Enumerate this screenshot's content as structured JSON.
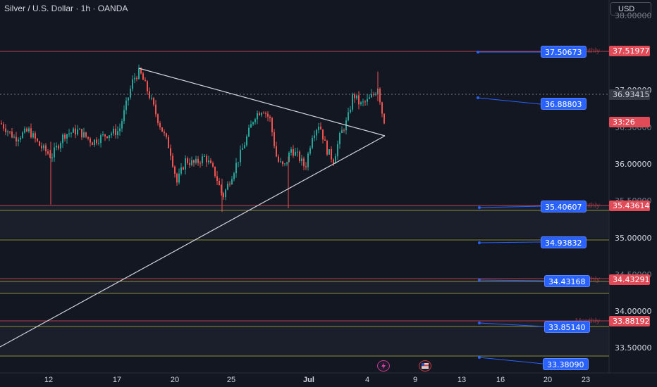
{
  "header": {
    "title": "Silver / U.S. Dollar · 1h · OANDA",
    "currency": "USD"
  },
  "y_axis": {
    "ticks": [
      "37.00000",
      "36.00000",
      "35.50000",
      "35.00000",
      "34.50000",
      "34.00000",
      "33.50000"
    ],
    "partial_ticks": [
      "38.00000",
      "36.50000"
    ]
  },
  "x_axis": {
    "ticks": [
      "12",
      "17",
      "20",
      "25",
      "Jul",
      "4",
      "9",
      "13",
      "16",
      "20",
      "23"
    ]
  },
  "badges": {
    "p_37_51977": "37.51977",
    "p_36_93415": "36.93415",
    "countdown": "33:26",
    "p_35_43614": "35.43614",
    "p_34_43291": "34.43291",
    "p_33_88192": "33.88192"
  },
  "monthly_label": "Monthly",
  "projections": [
    "37.50673",
    "36.88803",
    "35.40607",
    "34.93832",
    "34.43168",
    "33.85140",
    "33.38090"
  ],
  "colors": {
    "background": "#131722",
    "bull": "#26a69a",
    "bear": "#ef5350",
    "level_red": "#e04b57",
    "level_olive": "#a5a83c",
    "projection_blue": "#2962ff",
    "trend_lines": "#d1d4dc"
  },
  "icons": {
    "event_1": "lightning-event-icon",
    "event_2": "us-flag-event-icon"
  }
}
